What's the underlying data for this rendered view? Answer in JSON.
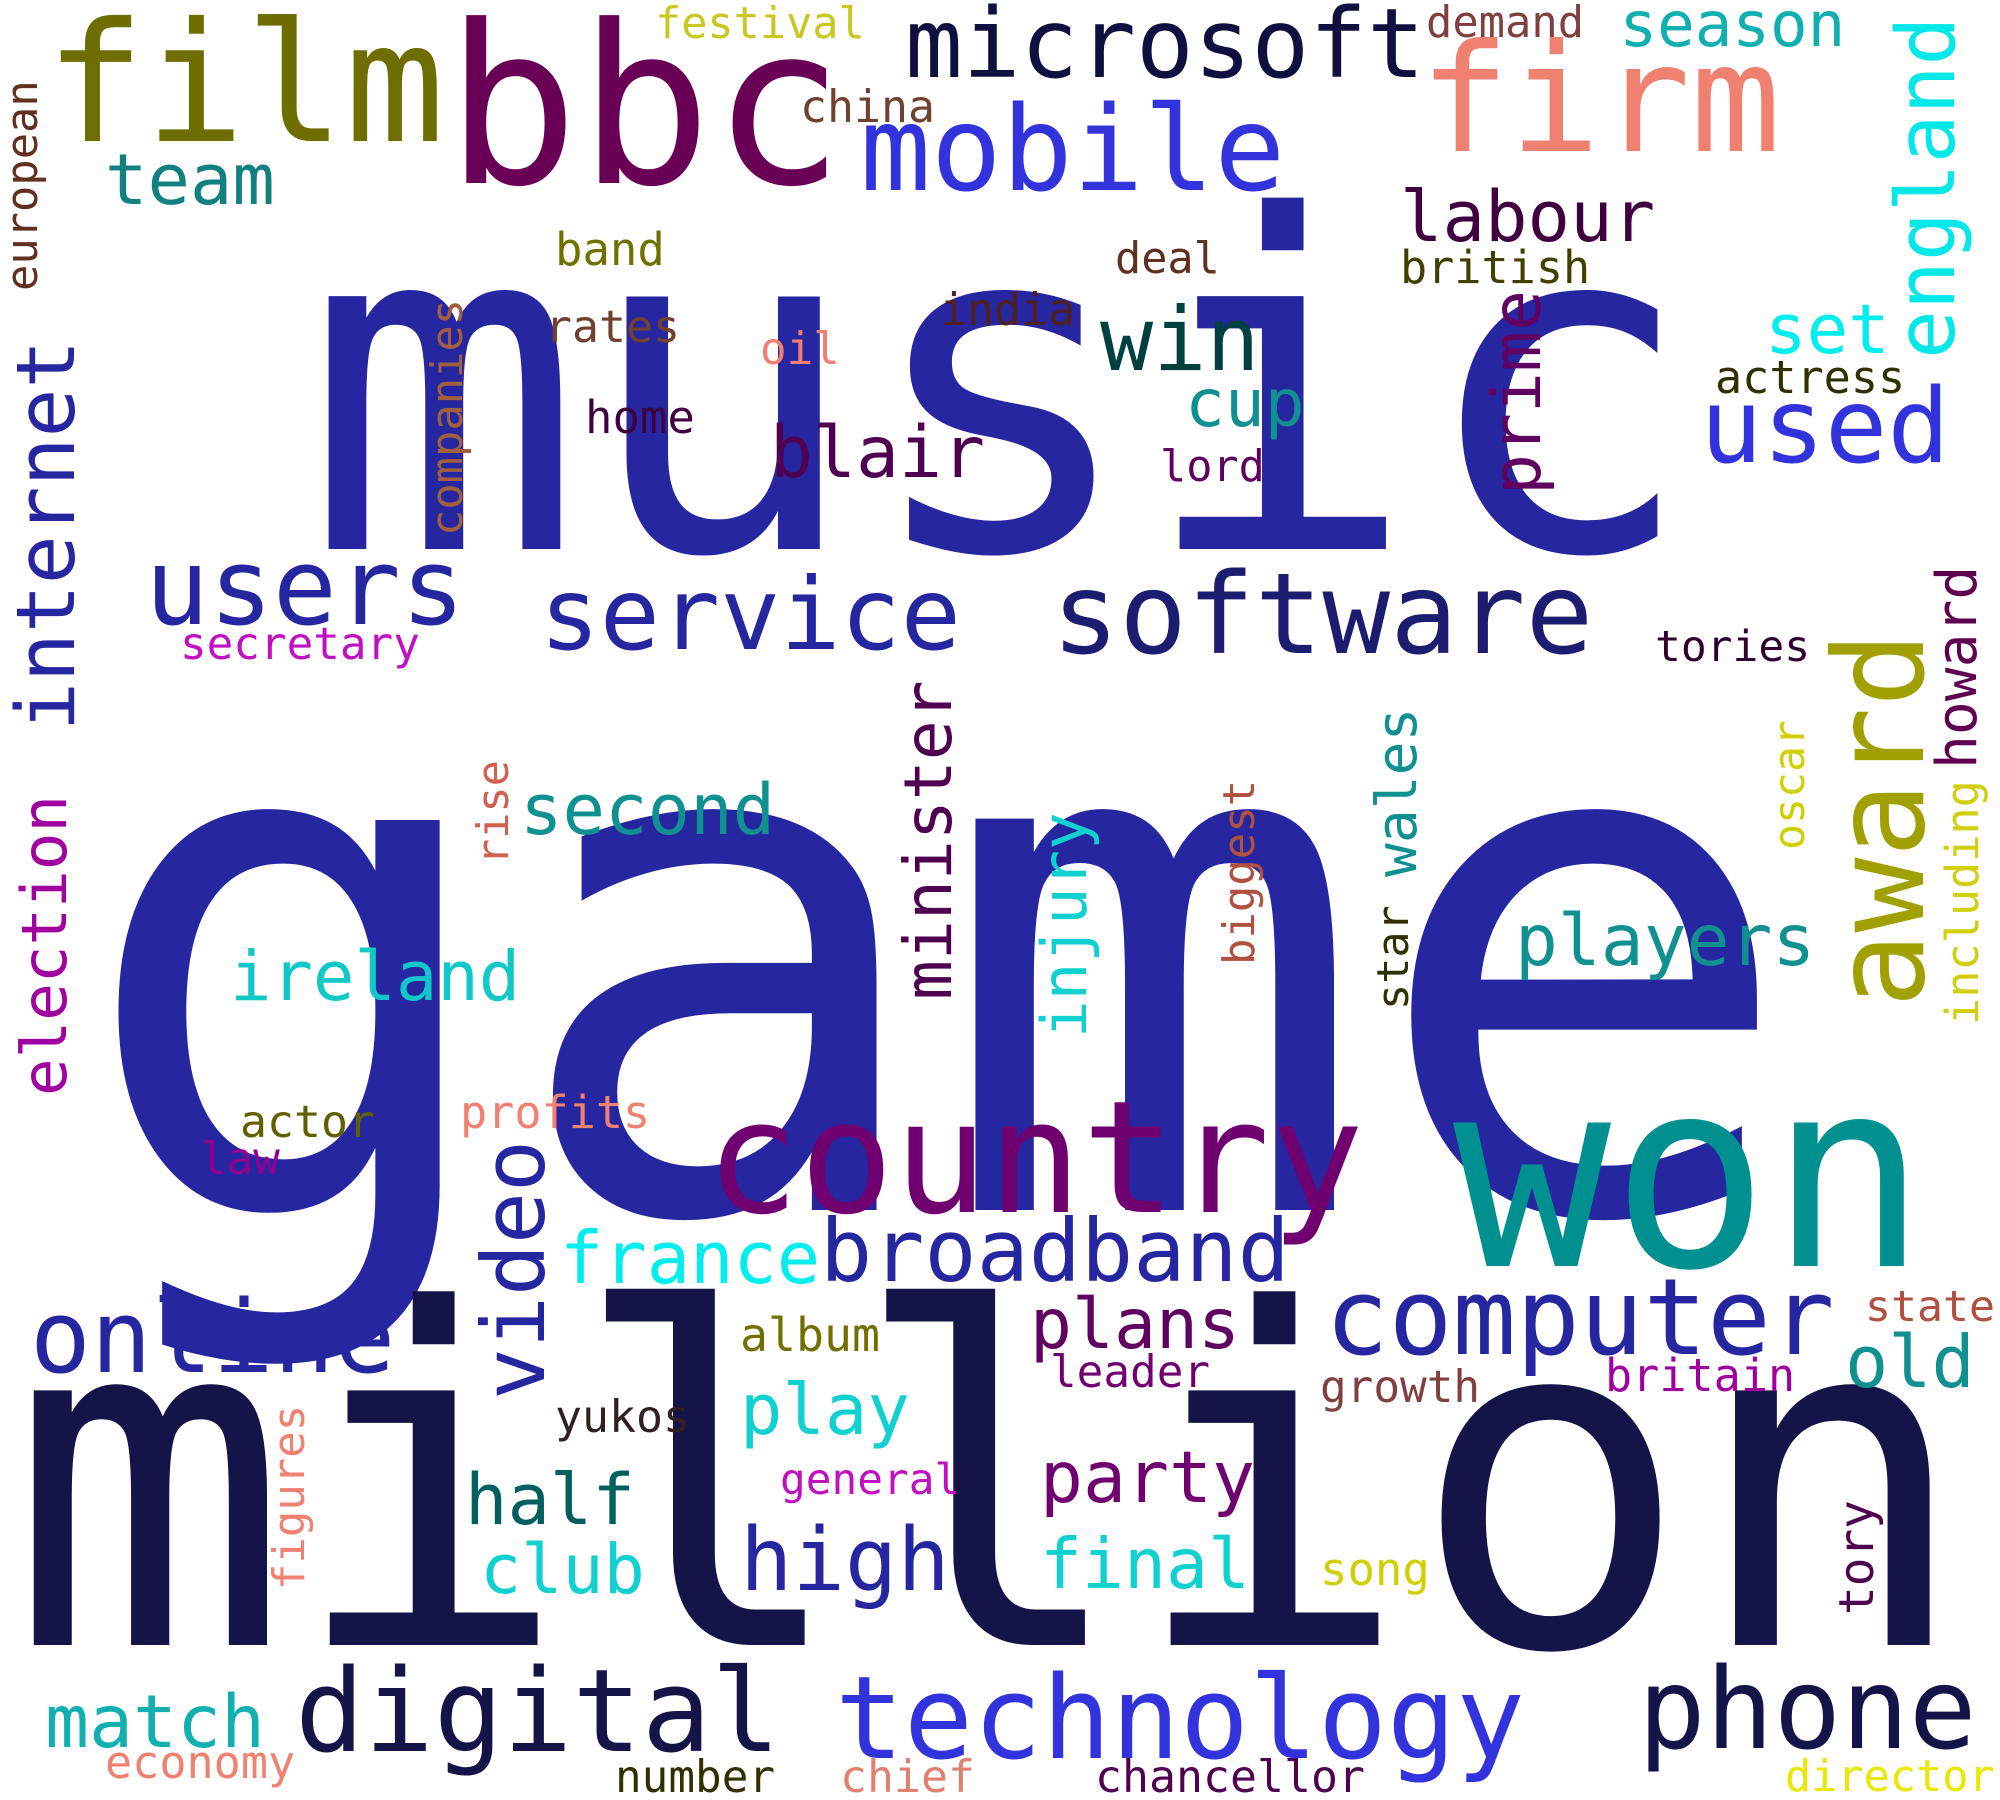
{
  "words": [
    {
      "text": "music",
      "color": "#2626a0"
    },
    {
      "text": "game",
      "color": "#2626a0"
    },
    {
      "text": "million",
      "color": "#141448"
    },
    {
      "text": "film",
      "color": "#6e6e00"
    },
    {
      "text": "bbc",
      "color": "#6a0055"
    },
    {
      "text": "microsoft",
      "color": "#101040"
    },
    {
      "text": "firm",
      "color": "#f08070"
    },
    {
      "text": "festival",
      "color": "#c8c820"
    },
    {
      "text": "china",
      "color": "#704030"
    },
    {
      "text": "demand",
      "color": "#804040"
    },
    {
      "text": "season",
      "color": "#10b0b0"
    },
    {
      "text": "england",
      "color": "#00e8e8"
    },
    {
      "text": "european",
      "color": "#603020"
    },
    {
      "text": "team",
      "color": "#108080"
    },
    {
      "text": "mobile",
      "color": "#3333dd"
    },
    {
      "text": "labour",
      "color": "#400040"
    },
    {
      "text": "band",
      "color": "#707000"
    },
    {
      "text": "deal",
      "color": "#603020"
    },
    {
      "text": "british",
      "color": "#404000"
    },
    {
      "text": "rates",
      "color": "#704030"
    },
    {
      "text": "india",
      "color": "#502020"
    },
    {
      "text": "set",
      "color": "#00eeee"
    },
    {
      "text": "internet",
      "color": "#2626a0"
    },
    {
      "text": "companies",
      "color": "#a06040"
    },
    {
      "text": "oil",
      "color": "#f08070"
    },
    {
      "text": "win",
      "color": "#004040"
    },
    {
      "text": "prime",
      "color": "#600060"
    },
    {
      "text": "actress",
      "color": "#303000"
    },
    {
      "text": "home",
      "color": "#400040"
    },
    {
      "text": "cup",
      "color": "#109090"
    },
    {
      "text": "used",
      "color": "#3333dd"
    },
    {
      "text": "blair",
      "color": "#500050"
    },
    {
      "text": "lord",
      "color": "#600060"
    },
    {
      "text": "users",
      "color": "#2626a0"
    },
    {
      "text": "service",
      "color": "#2626a0"
    },
    {
      "text": "software",
      "color": "#1c1c70"
    },
    {
      "text": "award",
      "color": "#a0a000"
    },
    {
      "text": "howard",
      "color": "#600050"
    },
    {
      "text": "secretary",
      "color": "#c010c0"
    },
    {
      "text": "tories",
      "color": "#300030"
    },
    {
      "text": "election",
      "color": "#a000a0"
    },
    {
      "text": "minister",
      "color": "#500050"
    },
    {
      "text": "rise",
      "color": "#d06050"
    },
    {
      "text": "second",
      "color": "#109090"
    },
    {
      "text": "wales",
      "color": "#109090"
    },
    {
      "text": "oscar",
      "color": "#d0d000"
    },
    {
      "text": "including",
      "color": "#d0d010"
    },
    {
      "text": "biggest",
      "color": "#b05040"
    },
    {
      "text": "injury",
      "color": "#10d0d0"
    },
    {
      "text": "star",
      "color": "#303000"
    },
    {
      "text": "ireland",
      "color": "#10c8c8"
    },
    {
      "text": "players",
      "color": "#109090"
    },
    {
      "text": "country",
      "color": "#700070"
    },
    {
      "text": "won",
      "color": "#009090"
    },
    {
      "text": "profits",
      "color": "#f08070"
    },
    {
      "text": "actor",
      "color": "#606000"
    },
    {
      "text": "law",
      "color": "#900090"
    },
    {
      "text": "video",
      "color": "#2626a0"
    },
    {
      "text": "france",
      "color": "#00eeee"
    },
    {
      "text": "broadband",
      "color": "#2626a0"
    },
    {
      "text": "online",
      "color": "#2626a0"
    },
    {
      "text": "computer",
      "color": "#2626a0"
    },
    {
      "text": "plans",
      "color": "#600060"
    },
    {
      "text": "state",
      "color": "#b05040"
    },
    {
      "text": "album",
      "color": "#707000"
    },
    {
      "text": "old",
      "color": "#109090"
    },
    {
      "text": "leader",
      "color": "#700070"
    },
    {
      "text": "growth",
      "color": "#804040"
    },
    {
      "text": "britain",
      "color": "#a000a0"
    },
    {
      "text": "yukos",
      "color": "#302020"
    },
    {
      "text": "play",
      "color": "#10d0d0"
    },
    {
      "text": "figures",
      "color": "#f08070"
    },
    {
      "text": "half",
      "color": "#006060"
    },
    {
      "text": "party",
      "color": "#700070"
    },
    {
      "text": "general",
      "color": "#c010c0"
    },
    {
      "text": "club",
      "color": "#10d0d0"
    },
    {
      "text": "high",
      "color": "#2626a0"
    },
    {
      "text": "final",
      "color": "#10d0d0"
    },
    {
      "text": "song",
      "color": "#d0d000"
    },
    {
      "text": "tory",
      "color": "#500050"
    },
    {
      "text": "match",
      "color": "#10b0b0"
    },
    {
      "text": "digital",
      "color": "#141448"
    },
    {
      "text": "technology",
      "color": "#3333dd"
    },
    {
      "text": "phone",
      "color": "#141448"
    },
    {
      "text": "economy",
      "color": "#f08070"
    },
    {
      "text": "number",
      "color": "#303000"
    },
    {
      "text": "chief",
      "color": "#e08070"
    },
    {
      "text": "chancellor",
      "color": "#500050"
    },
    {
      "text": "director",
      "color": "#e8e800"
    }
  ]
}
